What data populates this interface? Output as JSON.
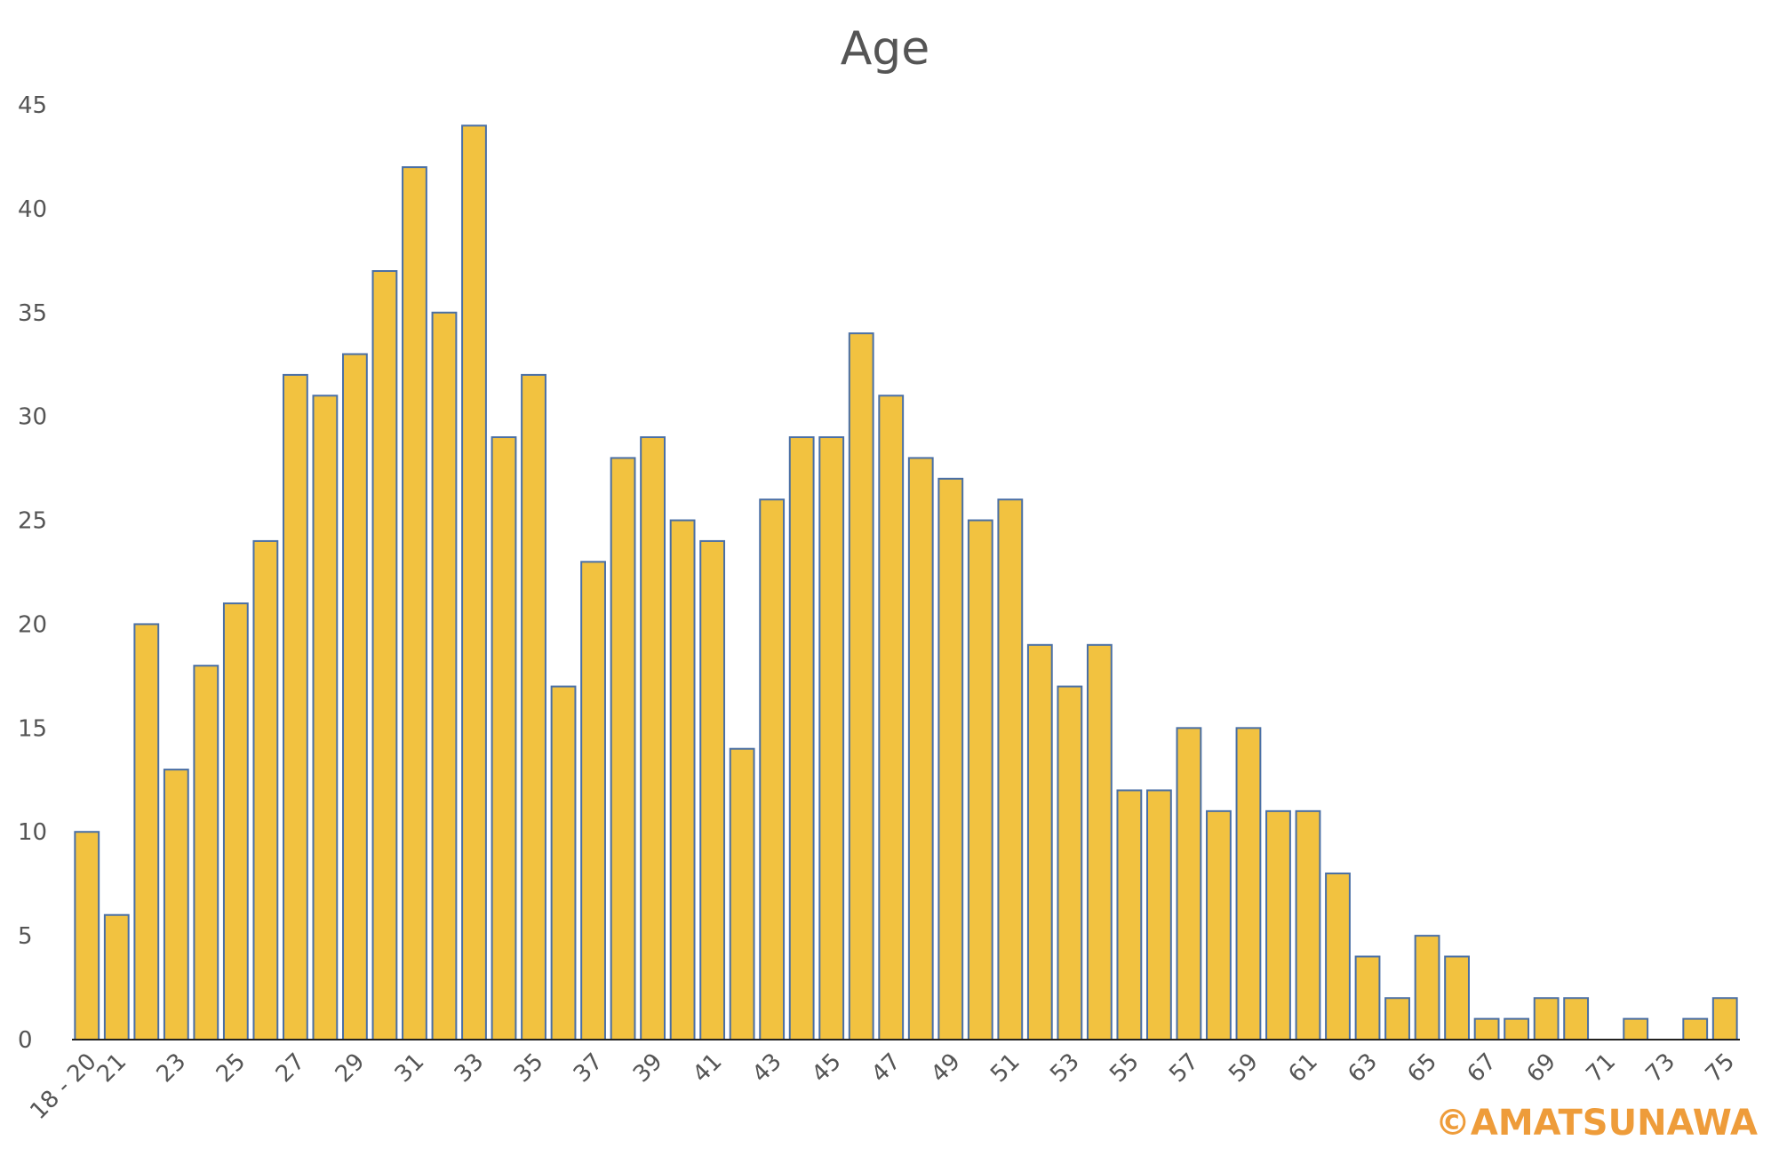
{
  "chart_data": {
    "type": "bar",
    "title": "Age",
    "xlabel": "",
    "ylabel": "",
    "ylim": [
      0,
      45
    ],
    "yticks": [
      0,
      5,
      10,
      15,
      20,
      25,
      30,
      35,
      40,
      45
    ],
    "grid": false,
    "legend": "none",
    "categories": [
      "18 - 20",
      "21",
      "22",
      "23",
      "24",
      "25",
      "26",
      "27",
      "28",
      "29",
      "30",
      "31",
      "32",
      "33",
      "34",
      "35",
      "36",
      "37",
      "38",
      "39",
      "40",
      "41",
      "42",
      "43",
      "44",
      "45",
      "46",
      "47",
      "48",
      "49",
      "50",
      "51",
      "52",
      "53",
      "54",
      "55",
      "56",
      "57",
      "58",
      "59",
      "60",
      "61",
      "62",
      "63",
      "64",
      "65",
      "66",
      "67",
      "68",
      "69",
      "70",
      "71",
      "72",
      "73",
      "74",
      "75"
    ],
    "xtick_labels": [
      "18 - 20",
      "21",
      "23",
      "25",
      "27",
      "29",
      "31",
      "33",
      "35",
      "37",
      "39",
      "41",
      "43",
      "45",
      "47",
      "49",
      "51",
      "53",
      "55",
      "57",
      "59",
      "61",
      "63",
      "65",
      "67",
      "69",
      "71",
      "73",
      "75"
    ],
    "values": [
      10,
      6,
      20,
      13,
      18,
      21,
      24,
      32,
      31,
      33,
      37,
      42,
      35,
      44,
      29,
      32,
      17,
      23,
      28,
      29,
      25,
      24,
      14,
      26,
      29,
      29,
      34,
      31,
      28,
      27,
      25,
      26,
      19,
      17,
      19,
      12,
      12,
      15,
      11,
      15,
      11,
      11,
      8,
      4,
      2,
      5,
      4,
      1,
      1,
      2,
      2,
      0,
      1,
      0,
      1,
      2
    ],
    "colors": {
      "bar_fill": "#F2C240",
      "bar_stroke": "#4A6FA5",
      "title": "#555555",
      "watermark": "#EE9C3A"
    }
  },
  "watermark": "©AMATSUNAWA"
}
